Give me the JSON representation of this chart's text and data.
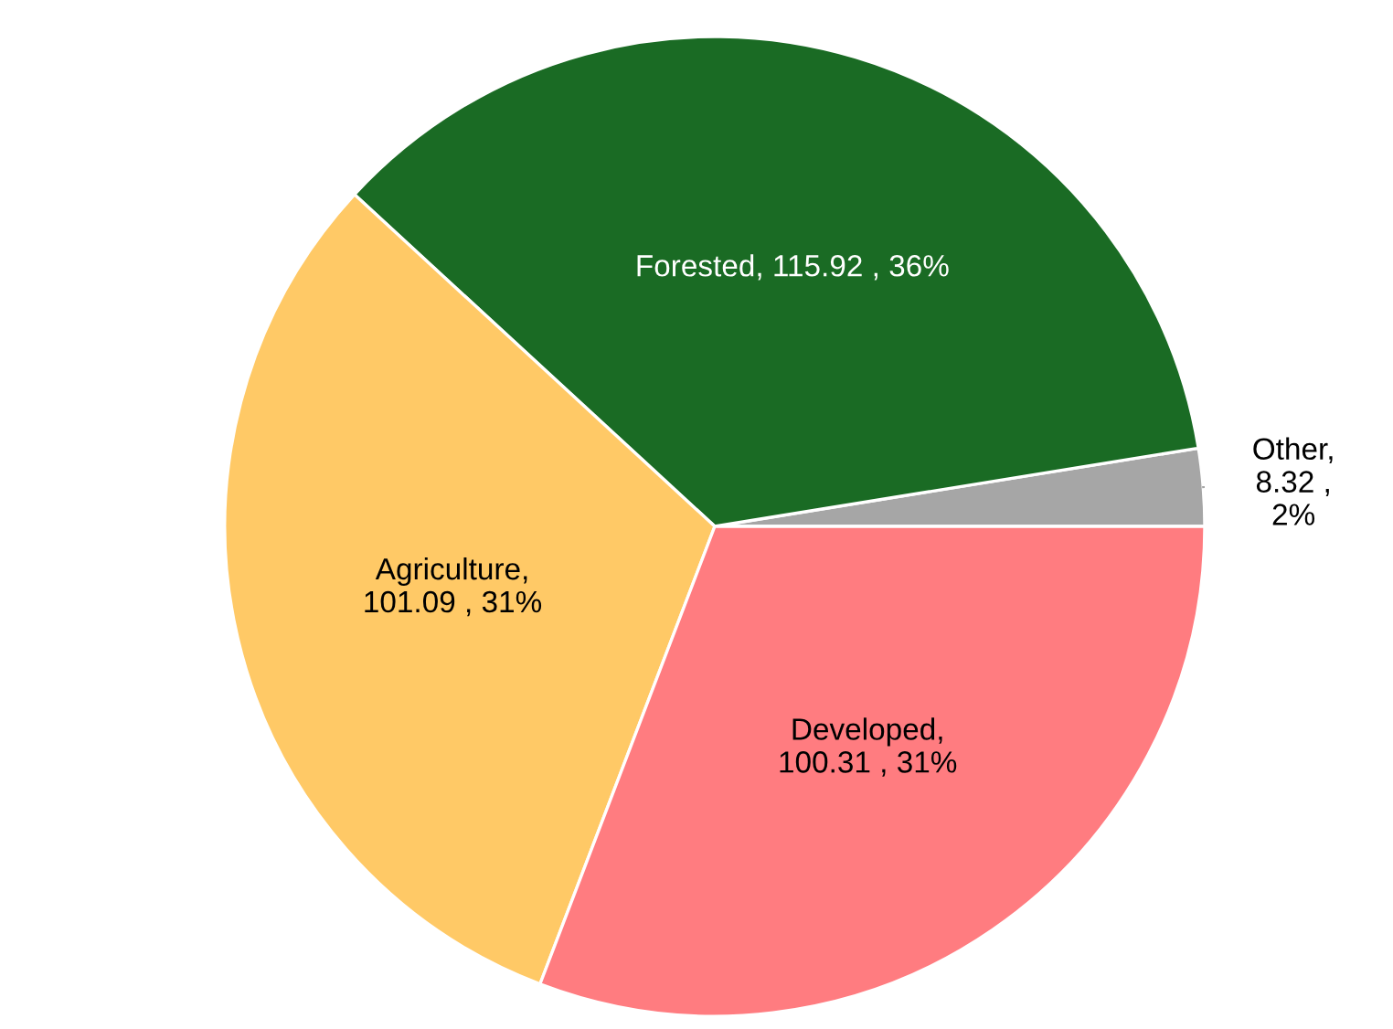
{
  "chart_data": {
    "type": "pie",
    "categories": [
      "Other",
      "Forested",
      "Agriculture",
      "Developed"
    ],
    "values": [
      8.32,
      115.92,
      101.09,
      100.31
    ],
    "colors": [
      "#a6a6a6",
      "#1a6b24",
      "#ffc966",
      "#ff7c80"
    ],
    "value_labels": [
      ",\n8.32 ,\n2%",
      ", 115.92 , 36%",
      ",\n101.09 , 31%",
      ",\n100.31 , 31%"
    ]
  }
}
